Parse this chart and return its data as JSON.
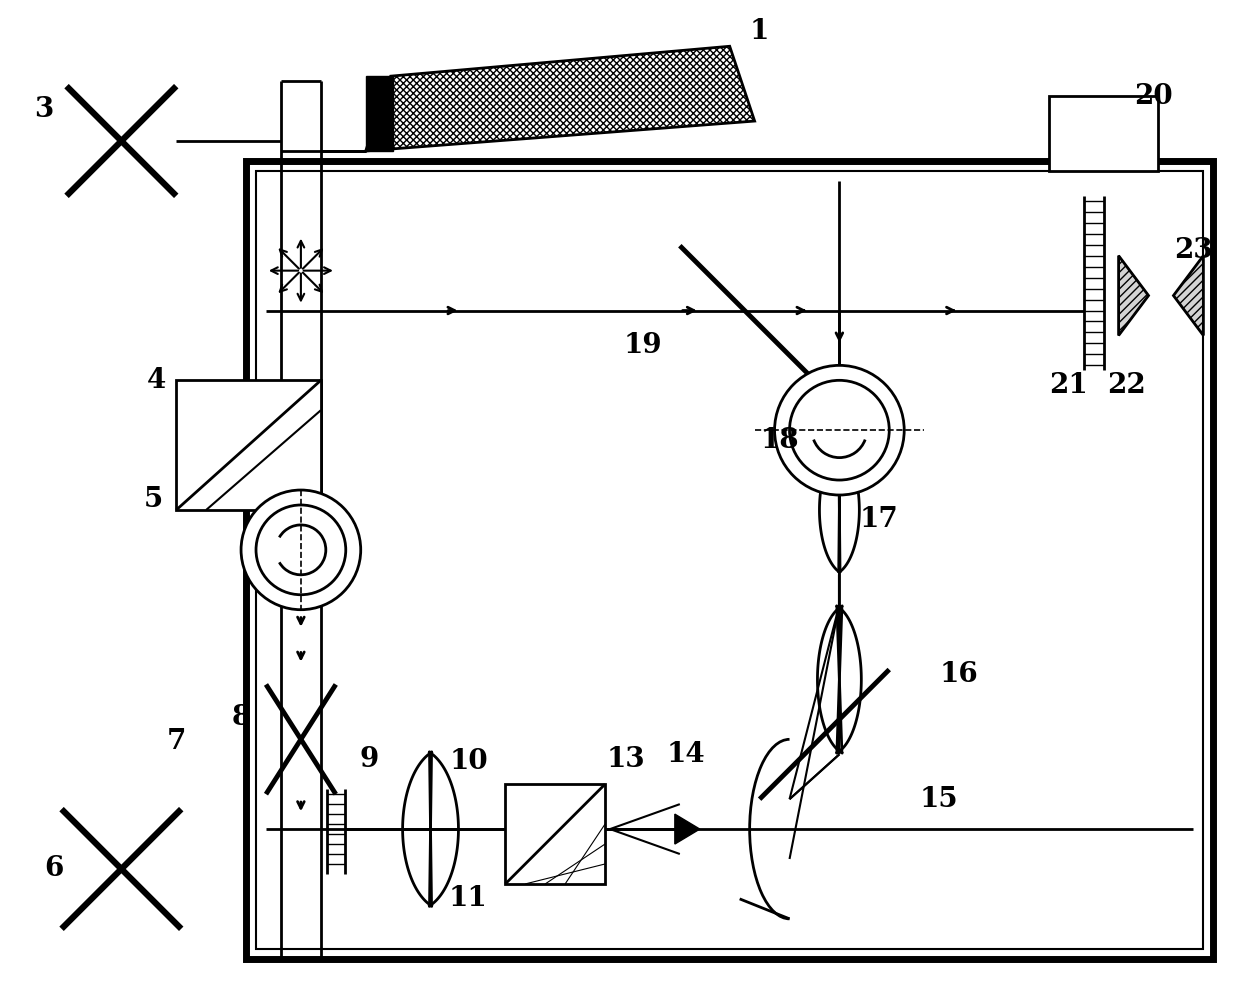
{
  "bg_color": "#ffffff",
  "line_color": "#000000",
  "fig_width": 12.4,
  "fig_height": 9.98,
  "dpi": 100
}
